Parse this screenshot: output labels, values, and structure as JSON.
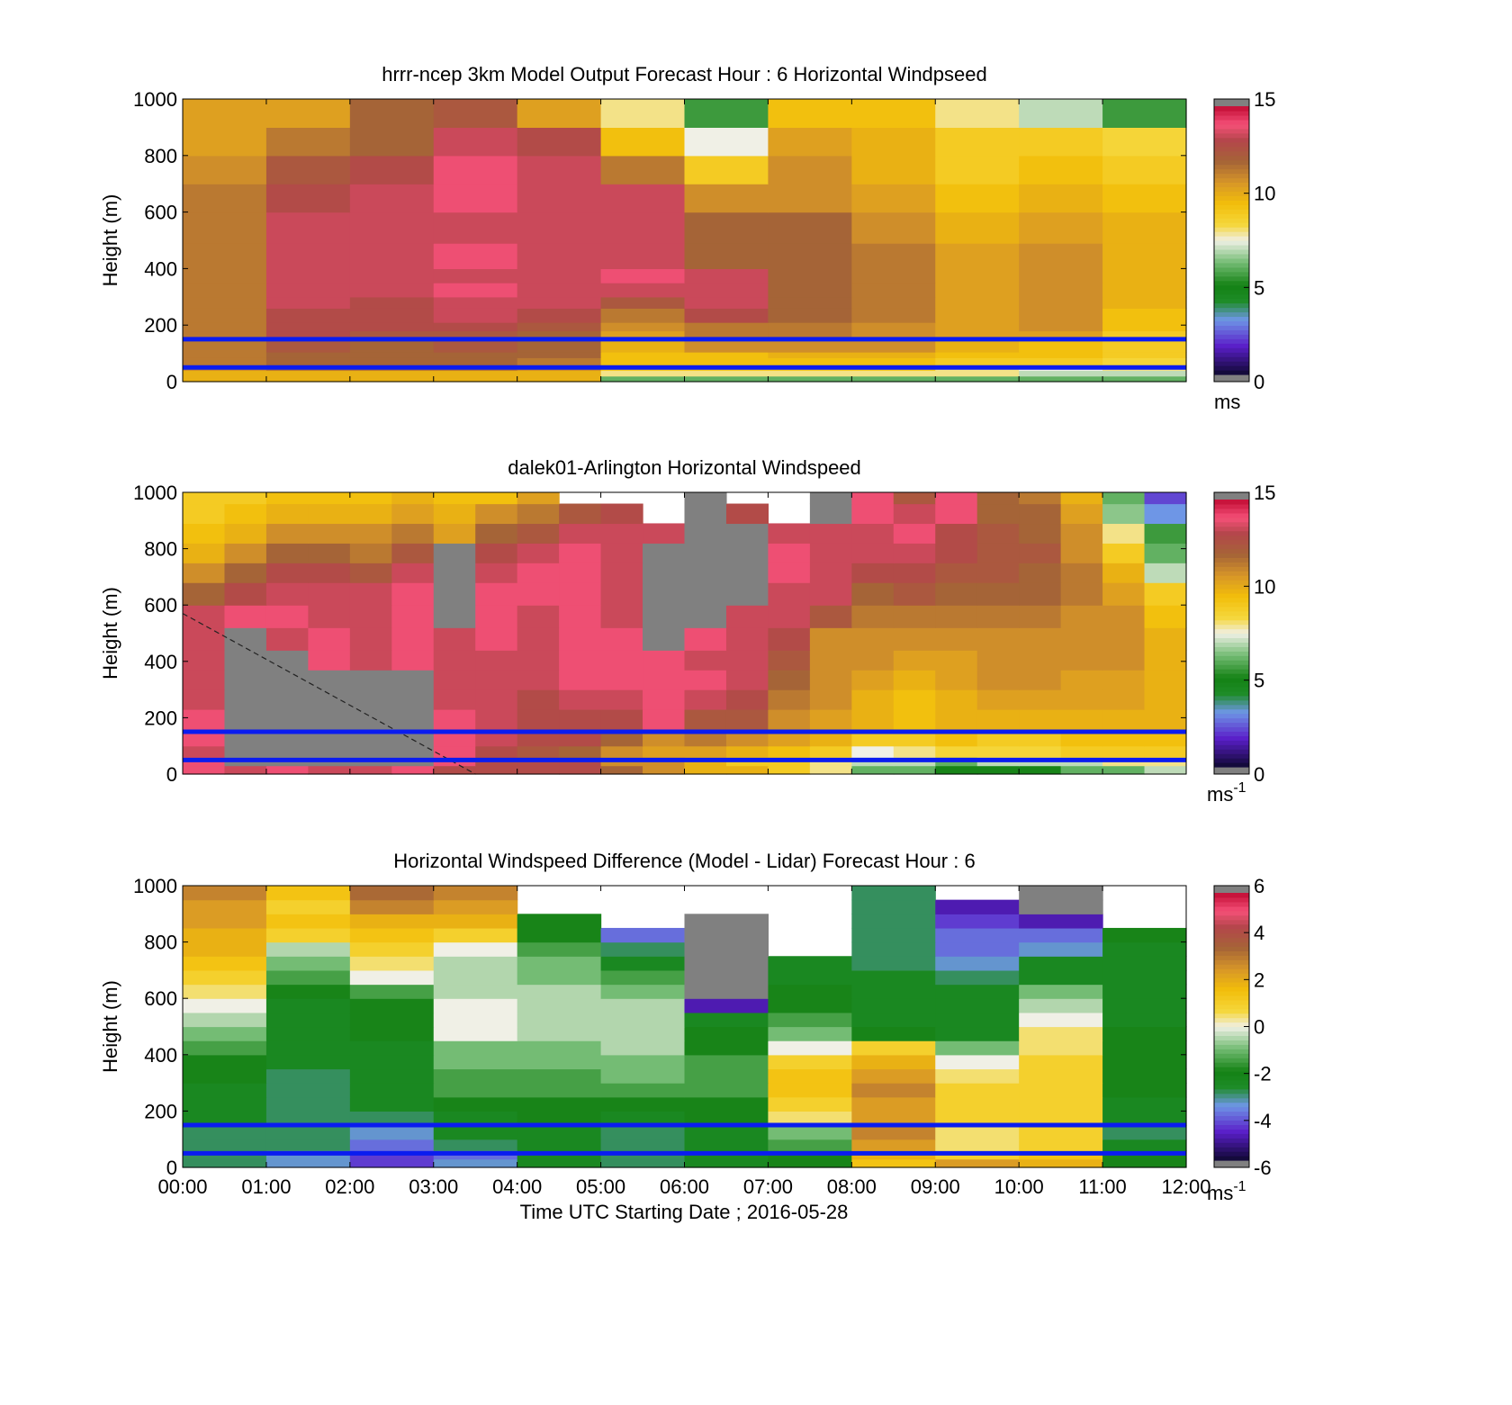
{
  "chart_data": [
    {
      "type": "heatmap",
      "title": "hrrr-ncep 3km Model Output   Forecast Hour : 6 Horizontal Windpseed",
      "ylabel": "Height (m)",
      "ylim": [
        0,
        1000
      ],
      "yticks": [
        "0",
        "200",
        "400",
        "600",
        "800",
        "1000"
      ],
      "xlim": [
        "00:00",
        "12:00"
      ],
      "colorbar": {
        "ticks": [
          "0",
          "5",
          "10",
          "15"
        ],
        "range": [
          0,
          15
        ],
        "unit": "ms"
      },
      "reference_lines_m": [
        50,
        150
      ],
      "x_bins": [
        "00:00",
        "01:00",
        "02:00",
        "03:00",
        "04:00",
        "05:00",
        "06:00",
        "07:00",
        "08:00",
        "09:00",
        "10:00",
        "11:00"
      ],
      "y_levels_m": [
        0,
        20,
        40,
        55,
        85,
        105,
        150,
        180,
        210,
        260,
        300,
        350,
        400,
        490,
        600,
        700,
        800,
        900,
        1000
      ],
      "values": [
        [
          10,
          10,
          10,
          10,
          10,
          6,
          6,
          6,
          6,
          6,
          6,
          6
        ],
        [
          10,
          10,
          10,
          10,
          10,
          8,
          8,
          8,
          8,
          8,
          7,
          7
        ],
        [
          11,
          11.5,
          11.5,
          11.5,
          11,
          9,
          9,
          9,
          9,
          8,
          7.5,
          8
        ],
        [
          11.5,
          12,
          12,
          12,
          11.5,
          9.5,
          9.5,
          9.5,
          9.5,
          9,
          9,
          8.5
        ],
        [
          11.5,
          12,
          12,
          12,
          12,
          9.5,
          9.5,
          10,
          10,
          9.5,
          9.5,
          9
        ],
        [
          11.5,
          12.5,
          12,
          12.5,
          12,
          10,
          11,
          11,
          11,
          10,
          9.5,
          9
        ],
        [
          11.5,
          13,
          12.5,
          12.5,
          12,
          10.5,
          11.5,
          11.5,
          11,
          10.5,
          10.5,
          9
        ],
        [
          11.5,
          13,
          13,
          13,
          12.5,
          11,
          11.5,
          11.5,
          11,
          10.5,
          11,
          9.5
        ],
        [
          11.5,
          13,
          13,
          13.5,
          13,
          11.5,
          13,
          12,
          11.5,
          10.5,
          11,
          9.5
        ],
        [
          11.5,
          13.5,
          13,
          13.5,
          13.5,
          12.5,
          13.5,
          12,
          11.5,
          10.5,
          11,
          10
        ],
        [
          11.5,
          13.5,
          13.5,
          14,
          13.5,
          13.5,
          13.5,
          12,
          11.5,
          10.5,
          11,
          10
        ],
        [
          11.5,
          13.5,
          13.5,
          13.5,
          13.5,
          14,
          13.5,
          12,
          11.5,
          10.5,
          11,
          10
        ],
        [
          11.5,
          13.5,
          13.5,
          14,
          13.5,
          13.5,
          12,
          12,
          11.5,
          10.5,
          11,
          10
        ],
        [
          11.5,
          13.5,
          13.5,
          13.5,
          13.5,
          13.5,
          12,
          12,
          11,
          10,
          10.5,
          10
        ],
        [
          11.5,
          13,
          13.5,
          14,
          13.5,
          13.5,
          11,
          11,
          10.5,
          9.5,
          10,
          9.5
        ],
        [
          11,
          12.5,
          13,
          14,
          13.5,
          11.5,
          9,
          11,
          10,
          9,
          9.5,
          9
        ],
        [
          10.5,
          11.5,
          12,
          13.5,
          13,
          9.5,
          7.5,
          10.5,
          10,
          9,
          9,
          8.5
        ],
        [
          10.5,
          10.5,
          12,
          12.5,
          10.5,
          8,
          5.5,
          9.5,
          9.5,
          8,
          7,
          5.5
        ]
      ]
    },
    {
      "type": "heatmap",
      "title": "dalek01-Arlington  Horizontal Windspeed",
      "ylabel": "Height (m)",
      "ylim": [
        0,
        1000
      ],
      "yticks": [
        "0",
        "200",
        "400",
        "600",
        "800",
        "1000"
      ],
      "xlim": [
        "00:00",
        "12:00"
      ],
      "colorbar": {
        "ticks": [
          "0",
          "5",
          "10",
          "15"
        ],
        "range": [
          0,
          15
        ],
        "unit": "ms",
        "unit_exponent": "-1"
      },
      "reference_lines_m": [
        50,
        150
      ],
      "reference_dashed_line": {
        "from": [
          "00:00",
          570
        ],
        "to": [
          "03:30",
          0
        ]
      },
      "x_bins": [
        "00:00",
        "00:30",
        "01:00",
        "01:30",
        "02:00",
        "02:30",
        "03:00",
        "03:30",
        "04:00",
        "04:30",
        "05:00",
        "05:30",
        "06:00",
        "06:30",
        "07:00",
        "07:30",
        "08:00",
        "08:30",
        "09:00",
        "09:30",
        "10:00",
        "10:30",
        "11:00",
        "11:30"
      ],
      "y_levels_m": [
        0,
        30,
        60,
        100,
        160,
        230,
        300,
        370,
        440,
        520,
        600,
        680,
        750,
        820,
        890,
        960,
        1000
      ],
      "values": [
        [
          14,
          13.5,
          14,
          13.5,
          13.5,
          14,
          13,
          13,
          13,
          13,
          12,
          11,
          10,
          10,
          9,
          8,
          6,
          6,
          5,
          5,
          5,
          6,
          6,
          7
        ],
        [
          14,
          "N",
          "N",
          "N",
          "N",
          "N",
          14,
          13,
          13,
          13,
          11,
          11,
          10,
          9,
          9,
          8,
          7,
          7,
          6,
          7,
          7,
          7,
          8,
          8
        ],
        [
          13.5,
          "N",
          "N",
          "N",
          "N",
          "N",
          14,
          13,
          12.5,
          12,
          11,
          10.5,
          10.5,
          10,
          9.5,
          9,
          7.5,
          8,
          8.5,
          8.5,
          8.5,
          9,
          9,
          9
        ],
        [
          14,
          "N",
          "N",
          "N",
          "N",
          "N",
          14,
          13.5,
          13,
          13,
          12,
          11,
          11.5,
          11,
          10.5,
          10,
          9,
          9,
          9.5,
          9,
          9,
          9.5,
          9.5,
          9.5
        ],
        [
          14,
          "N",
          "N",
          "N",
          "N",
          "N",
          14,
          13.5,
          13,
          13,
          13,
          14,
          12.5,
          12.5,
          11,
          10.5,
          10,
          9.5,
          10,
          10,
          10,
          10,
          10,
          10
        ],
        [
          13.5,
          "N",
          "N",
          "N",
          "N",
          "N",
          13.5,
          13.5,
          13,
          13.5,
          13.5,
          14,
          13.5,
          13,
          11.5,
          11,
          10,
          9.5,
          10,
          10.5,
          10.5,
          10.5,
          10.5,
          10
        ],
        [
          13.5,
          "N",
          "N",
          "N",
          "N",
          "N",
          13.5,
          13.5,
          13.5,
          14,
          14,
          14,
          14,
          13.5,
          12,
          11,
          10.5,
          10,
          10.5,
          11,
          11,
          10.5,
          10.5,
          10
        ],
        [
          13.5,
          "N",
          "N",
          14,
          13.5,
          14,
          13.5,
          13.5,
          13.5,
          14,
          14,
          14,
          13.5,
          13.5,
          12.5,
          11,
          11,
          10.5,
          10.5,
          11,
          11,
          11,
          11,
          10
        ],
        [
          13.5,
          "N",
          13.5,
          14,
          13.5,
          14,
          13.5,
          14,
          13.5,
          14,
          14,
          "N",
          14,
          13.5,
          13,
          11,
          11,
          11,
          11,
          11,
          11,
          11,
          11,
          10
        ],
        [
          13.5,
          14,
          14,
          13.5,
          13.5,
          14,
          "N",
          14,
          13.5,
          14,
          13.5,
          "N",
          "N",
          13.5,
          13.5,
          12.5,
          11.5,
          11.5,
          11.5,
          11.5,
          11.5,
          11,
          11,
          9.5
        ],
        [
          12,
          13,
          13.5,
          13.5,
          13.5,
          14,
          "N",
          14,
          14,
          14,
          13.5,
          "N",
          "N",
          "N",
          13.5,
          13.5,
          12,
          12.5,
          12,
          12,
          12,
          11.5,
          10.5,
          9
        ],
        [
          11,
          12,
          13,
          13,
          12.5,
          13.5,
          "N",
          13.5,
          14,
          14,
          13.5,
          "N",
          "N",
          "N",
          14,
          13.5,
          13,
          13,
          12.5,
          12.5,
          12,
          11.5,
          10,
          7
        ],
        [
          10,
          11,
          12,
          12,
          11.5,
          12.5,
          "N",
          13,
          13.5,
          14,
          13.5,
          "N",
          "N",
          "N",
          14,
          13.5,
          13.5,
          13.5,
          13,
          12.5,
          12.5,
          11,
          9,
          6
        ],
        [
          9.5,
          10,
          11,
          11,
          11,
          11.5,
          10.5,
          12,
          12.5,
          13.5,
          13.5,
          13.5,
          "N",
          "N",
          13.5,
          13.5,
          13.5,
          14,
          13,
          12.5,
          12,
          11,
          8,
          5.5
        ],
        [
          9,
          9.5,
          10,
          10,
          10,
          10.5,
          10,
          11,
          11.5,
          12.5,
          13,
          "X",
          "N",
          13,
          "X",
          "N",
          14,
          13.5,
          14,
          12,
          12,
          10.5,
          6.5,
          3
        ],
        [
          9,
          9,
          9.5,
          9.5,
          9.5,
          10,
          9.5,
          9.5,
          10.5,
          "X",
          "X",
          "X",
          "N",
          "X",
          "X",
          "N",
          14,
          12.5,
          14,
          12,
          11.5,
          10,
          6,
          2
        ]
      ]
    },
    {
      "type": "heatmap",
      "title": "Horizontal Windspeed Difference (Model - Lidar) Forecast Hour : 6",
      "xlabel": "Time UTC  Starting Date ; 2016-05-28",
      "ylabel": "Height (m)",
      "ylim": [
        0,
        1000
      ],
      "yticks": [
        "0",
        "200",
        "400",
        "600",
        "800",
        "1000"
      ],
      "xlim": [
        "00:00",
        "12:00"
      ],
      "xticks": [
        "00:00",
        "01:00",
        "02:00",
        "03:00",
        "04:00",
        "05:00",
        "06:00",
        "07:00",
        "08:00",
        "09:00",
        "10:00",
        "11:00",
        "12:00"
      ],
      "colorbar": {
        "ticks": [
          "-6",
          "-4",
          "-2",
          "0",
          "2",
          "4",
          "6"
        ],
        "range": [
          -6,
          6
        ],
        "unit": "ms",
        "unit_exponent": "-1"
      },
      "reference_lines_m": [
        50,
        150
      ],
      "x_bins": [
        "00:00",
        "01:00",
        "02:00",
        "03:00",
        "04:00",
        "05:00",
        "06:00",
        "07:00",
        "08:00",
        "09:00",
        "10:00",
        "11:00"
      ],
      "y_levels_m": [
        0,
        30,
        60,
        100,
        150,
        200,
        250,
        300,
        350,
        400,
        450,
        500,
        550,
        600,
        650,
        700,
        750,
        800,
        850,
        900,
        950,
        1000
      ],
      "values": [
        [
          -3,
          -3.5,
          -4.5,
          -3.5,
          -2.5,
          -3,
          -2.5,
          -2,
          1.5,
          2.5,
          2,
          -2
        ],
        [
          -3,
          -3.5,
          -4.5,
          -4,
          -2.5,
          -3,
          -2.5,
          -2,
          2,
          1,
          1.5,
          -2
        ],
        [
          -3,
          -3,
          -4,
          -3,
          -2.5,
          -3,
          -2.5,
          -1.5,
          2.5,
          0.5,
          1,
          -2.5
        ],
        [
          -3,
          -3,
          -3.5,
          -2.5,
          -2.5,
          -3,
          -2.5,
          -1,
          3,
          0.5,
          1,
          -3
        ],
        [
          -2.5,
          -3,
          -3,
          -2.5,
          -2,
          -2.5,
          -2,
          0.5,
          2.5,
          1,
          1,
          -2.5
        ],
        [
          -2.5,
          -3,
          -2.5,
          -2,
          -2,
          -2,
          -2,
          1,
          2.5,
          1,
          1,
          -2.5
        ],
        [
          -2.5,
          -3,
          -2.5,
          -1.5,
          -1.5,
          -1.5,
          -1.5,
          1.5,
          3,
          1,
          1,
          -2
        ],
        [
          -2,
          -3,
          -2.5,
          -1.5,
          -1.5,
          -1,
          -1.5,
          1.5,
          2.5,
          0.5,
          1,
          -2
        ],
        [
          -2,
          -2.5,
          -2.5,
          -1,
          -1,
          -1,
          -1.5,
          1,
          2,
          0,
          1,
          -2
        ],
        [
          -1.5,
          -2.5,
          -2.5,
          -1,
          -1,
          -0.5,
          -2,
          0,
          1,
          -1,
          0.5,
          -2
        ],
        [
          -1,
          -2.5,
          -2,
          0,
          -0.5,
          -0.5,
          -2,
          -1,
          -2,
          -2.5,
          0.5,
          -2
        ],
        [
          -0.5,
          -2.5,
          -2,
          0,
          -0.5,
          -0.5,
          -2.5,
          -1.5,
          -2.5,
          -2.5,
          0,
          -2.5
        ],
        [
          0,
          -2.5,
          -2,
          0,
          -0.5,
          -0.5,
          -5,
          -2,
          -2.5,
          -2.5,
          -0.5,
          -2.5
        ],
        [
          0.5,
          -2,
          -1.5,
          -0.5,
          -0.5,
          -1,
          "N",
          -2,
          -2.5,
          -2.5,
          -1,
          -2.5
        ],
        [
          1,
          -1.5,
          0,
          -0.5,
          -1,
          -1.5,
          "N",
          -2.5,
          -2.5,
          -3,
          -2.5,
          -2.5
        ],
        [
          1.5,
          -1,
          0.5,
          -0.5,
          -1,
          -2.5,
          "N",
          -2.5,
          -3,
          -3.5,
          -2.5,
          -2.5
        ],
        [
          2,
          -0.5,
          1,
          0,
          -1.5,
          -3,
          "N",
          "X",
          -3,
          -4,
          -3.5,
          -2.5
        ],
        [
          2,
          1,
          1.5,
          1,
          -2,
          -4,
          "N",
          "X",
          -3,
          -4,
          -4,
          -2
        ],
        [
          2.5,
          1.5,
          2,
          2,
          -2,
          "X",
          "N",
          "X",
          -3,
          -4.5,
          -5,
          "X"
        ],
        [
          2.5,
          1,
          3,
          2.5,
          "X",
          "X",
          "X",
          "X",
          -3,
          -5,
          "N",
          "X"
        ],
        [
          3,
          1.5,
          3.5,
          3,
          "X",
          "X",
          "X",
          "X",
          -3,
          "X",
          "N",
          "X"
        ]
      ]
    }
  ],
  "notes_legend": {
    "N": "no data (grey)",
    "X": "blank"
  }
}
